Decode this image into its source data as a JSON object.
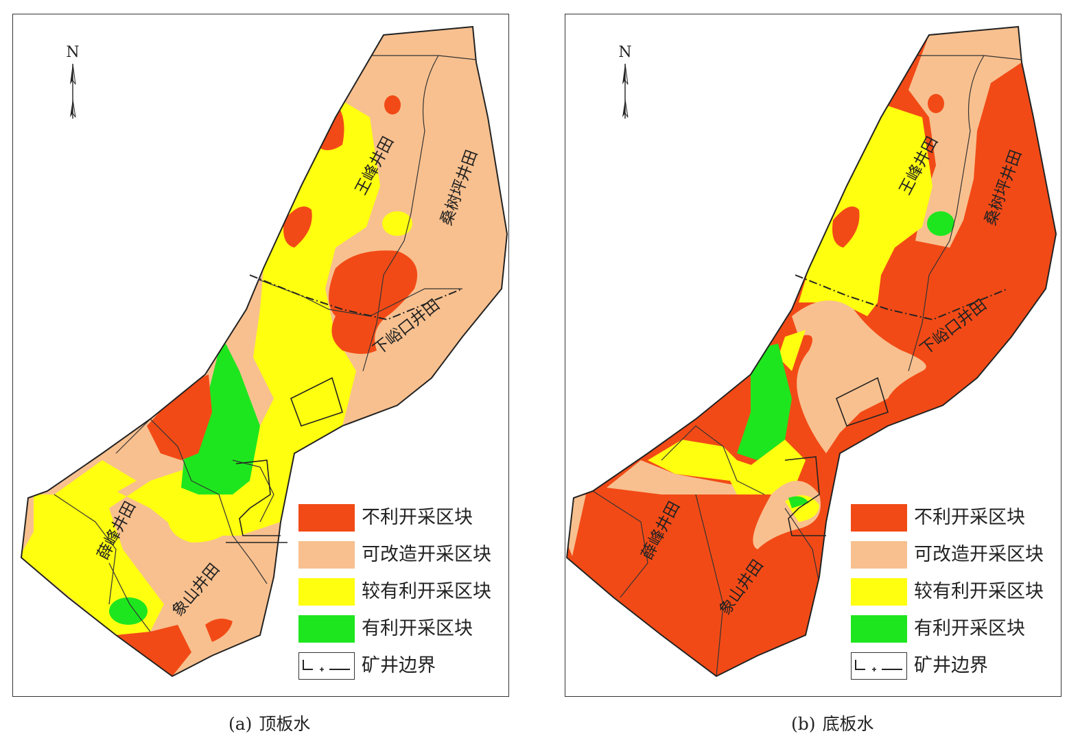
{
  "colors": {
    "unfavorable": "#f24a16",
    "modifiable": "#f8c08f",
    "relatively_favorable": "#ffff10",
    "favorable": "#1ee61e",
    "boundary": "#222222"
  },
  "north_label": "N",
  "panels": [
    {
      "id": "a",
      "caption_tag": "(a)",
      "caption_text": "顶板水",
      "field_labels": {
        "wangfeng": "王峰井田",
        "sangshuping": "桑树坪井田",
        "xiayukou": "下峪口井田",
        "xuefeng": "薛峰井田",
        "xiangshan": "象山井田"
      }
    },
    {
      "id": "b",
      "caption_tag": "(b)",
      "caption_text": "底板水",
      "field_labels": {
        "wangfeng": "王峰井田",
        "sangshuping": "桑树坪井田",
        "xiayukou": "下峪口井田",
        "xuefeng": "薛峰井田",
        "xiangshan": "象山井田"
      }
    }
  ],
  "legend": [
    {
      "key": "unfavorable",
      "label": "不利开采区块",
      "icon": "color-swatch"
    },
    {
      "key": "modifiable",
      "label": "可改造开采区块",
      "icon": "color-swatch"
    },
    {
      "key": "relatively_favorable",
      "label": "较有利开采区块",
      "icon": "color-swatch"
    },
    {
      "key": "favorable",
      "label": "有利开采区块",
      "icon": "color-swatch"
    },
    {
      "key": "boundary",
      "label": "矿井边界",
      "icon": "mine-boundary-line-icon"
    }
  ]
}
